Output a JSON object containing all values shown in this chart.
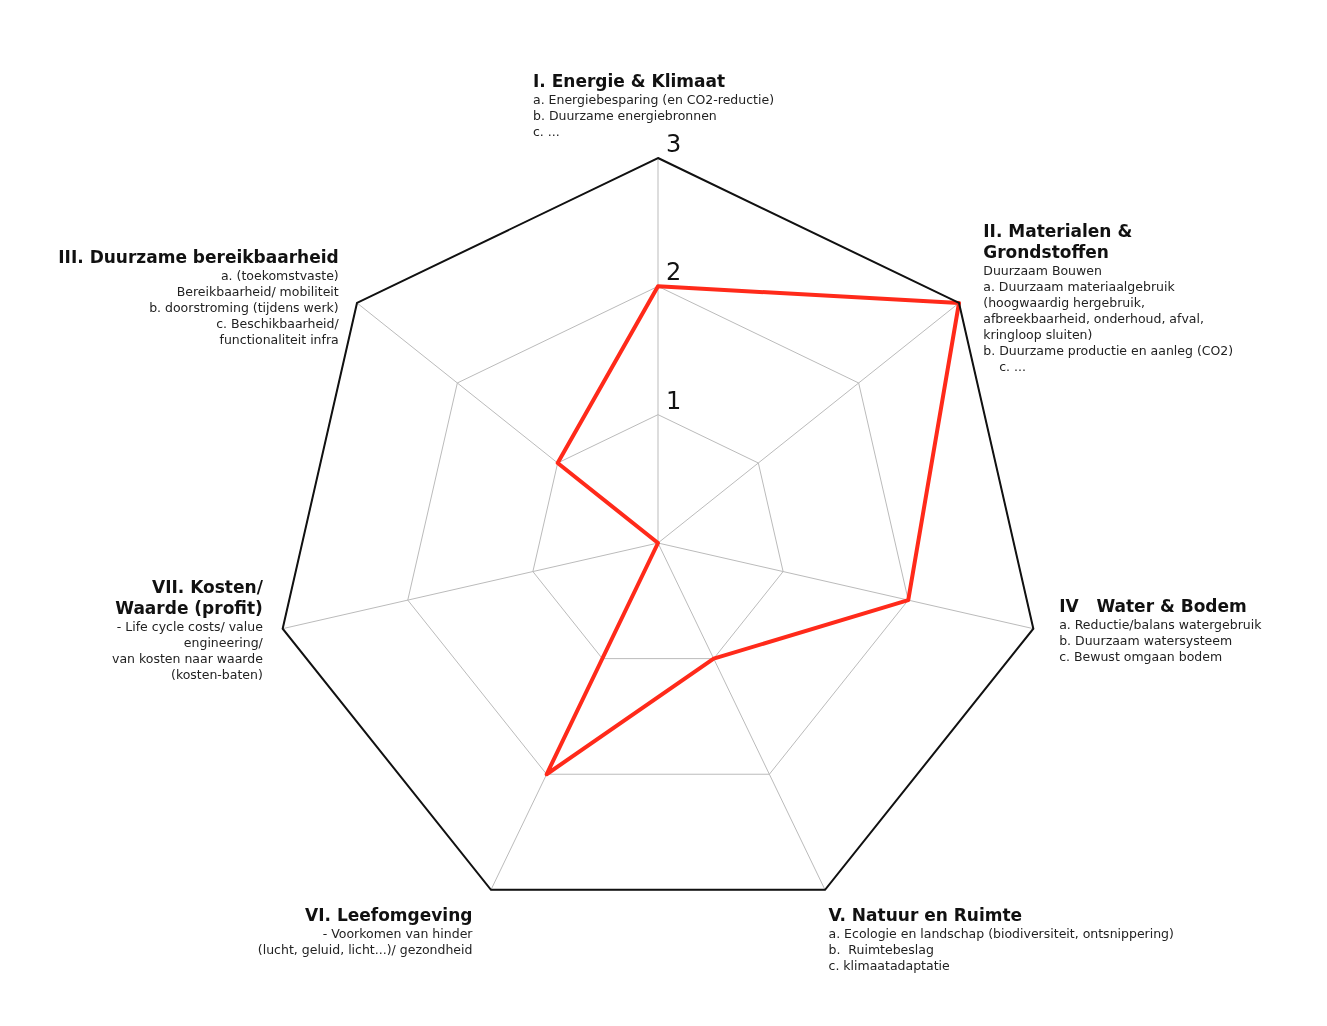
{
  "chart_data": {
    "type": "radar",
    "categories": [
      "I. Energie & Klimaat",
      "II. Materialen &\nGrondstoffen",
      "IV   Water & Bodem",
      "V. Natuur en Ruimte",
      "VI. Leefomgeving",
      "VII. Kosten/\nWaarde (profit)",
      "III. Duurzame bereikbaarheid"
    ],
    "annotations": [
      "a. Energiebesparing (en CO2-reductie)\nb. Duurzame energiebronnen\nc. ...",
      "Duurzaam Bouwen\na. Duurzaam materiaalgebruik\n(hoogwaardig hergebruik,\nafbreekbaarheid, onderhoud, afval,\nkringloop sluiten)\nb. Duurzame productie en aanleg (CO2)\n    c. ...",
      "a. Reductie/balans watergebruik\nb. Duurzaam watersysteem\nc. Bewust omgaan bodem",
      "a. Ecologie en landschap (biodiversiteit, ontsnippering)\nb.  Ruimtebeslag\nc. klimaatadaptatie",
      "- Voorkomen van hinder\n(lucht, geluid, licht...)/ gezondheid",
      "- Life cycle costs/ value\nengineering/\nvan kosten naar waarde\n(kosten-baten)",
      "a. (toekomstvaste)\nBereikbaarheid/ mobiliteit\nb. doorstroming (tijdens werk)\nc. Beschikbaarheid/\nfunctionaliteit infra"
    ],
    "series": [
      {
        "color": "#ff2a1a",
        "values": [
          2,
          3,
          2,
          1,
          2,
          0,
          1
        ]
      }
    ],
    "ylim": [
      0,
      3
    ],
    "yticks": [
      1,
      2,
      3
    ],
    "grid": true
  }
}
